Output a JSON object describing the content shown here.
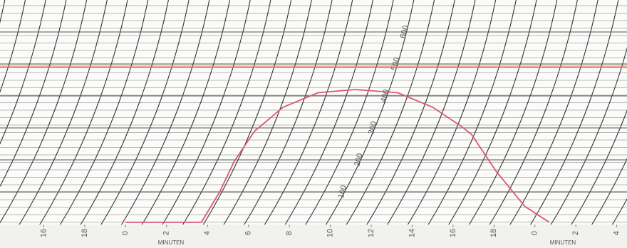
{
  "chart_data": {
    "type": "line",
    "x_label": "MINUTEN",
    "x_label_right": "MINUTEN",
    "xlim": [
      -6,
      24.5
    ],
    "xticks": [
      {
        "value": -4,
        "label": "16"
      },
      {
        "value": -2,
        "label": "18"
      },
      0,
      2,
      4,
      6,
      8,
      10,
      12,
      14,
      16,
      18,
      {
        "value": 20,
        "label": "0"
      },
      {
        "value": 22,
        "label": "2"
      },
      {
        "value": 24,
        "label": "4"
      }
    ],
    "ylim": [
      0,
      700
    ],
    "yticks": [
      100,
      200,
      300,
      400,
      500,
      600
    ],
    "reference_line": {
      "value": 490,
      "color": "#ec6a3e"
    },
    "series": [
      {
        "color": "#d9577a",
        "x": [
          0,
          3.7,
          4.6,
          5.3,
          6.3,
          7.7,
          9.4,
          11.2,
          13.3,
          15.0,
          16.4,
          16.9,
          18.1,
          19.5,
          20.7
        ],
        "values": [
          5,
          5,
          100,
          195,
          290,
          365,
          410,
          420,
          410,
          365,
          305,
          280,
          165,
          55,
          5
        ]
      }
    ]
  }
}
